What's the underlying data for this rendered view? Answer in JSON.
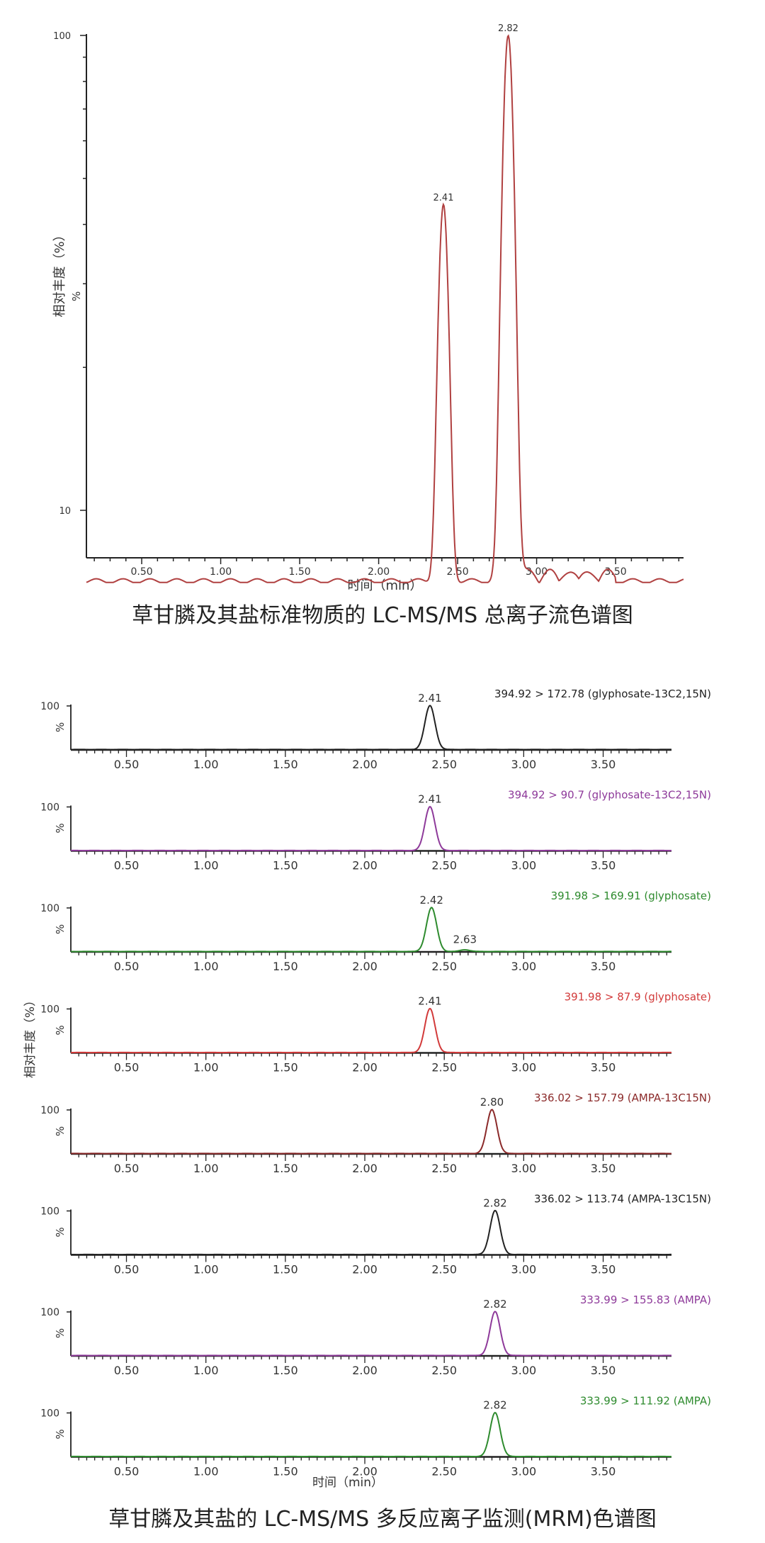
{
  "chart_data": [
    {
      "type": "line",
      "title": "",
      "xlabel": "时间（min）",
      "ylabel": "相对丰度（%）",
      "ylabel_extra": "%",
      "xlim": [
        0.15,
        3.93
      ],
      "ylim": [
        7,
        100
      ],
      "y_scale": "log",
      "y_ticks": [
        "100",
        "10"
      ],
      "x_ticks": [
        "0.50",
        "1.00",
        "1.50",
        "2.00",
        "2.50",
        "3.00",
        "3.50"
      ],
      "series_color": "#b04040",
      "peaks": [
        {
          "rt": 2.41,
          "height": 44,
          "width": 0.028,
          "label": "2.41"
        },
        {
          "rt": 2.82,
          "height": 100,
          "width": 0.03,
          "label": "2.82"
        }
      ],
      "baseline": 7.1
    },
    {
      "type": "line",
      "title": "",
      "xlabel": "时间（min）",
      "ylabel": "相对丰度（%）",
      "xlim": [
        0.15,
        3.93
      ],
      "ylim": [
        0,
        100
      ],
      "x_ticks": [
        "0.50",
        "1.00",
        "1.50",
        "2.00",
        "2.50",
        "3.00",
        "3.50"
      ],
      "panels": [
        {
          "transition": "394.92 > 172.78 (glyphosate-13C2,15N)",
          "color": "#222222",
          "y_top": "100",
          "y_pct": "%",
          "peaks": [
            {
              "rt": 2.41,
              "height": 100,
              "label": "2.41"
            }
          ]
        },
        {
          "transition": "394.92 > 90.7 (glyphosate-13C2,15N)",
          "color": "#8e3a9a",
          "y_top": "100",
          "y_pct": "%",
          "peaks": [
            {
              "rt": 2.41,
              "height": 100,
              "label": "2.41"
            }
          ]
        },
        {
          "transition": "391.98 > 169.91 (glyphosate)",
          "color": "#2e8b2e",
          "y_top": "100",
          "y_pct": "%",
          "peaks": [
            {
              "rt": 2.42,
              "height": 100,
              "label": "2.42"
            },
            {
              "rt": 2.63,
              "height": 4,
              "label": "2.63"
            }
          ]
        },
        {
          "transition": "391.98 > 87.9 (glyphosate)",
          "color": "#d23a3a",
          "y_top": "100",
          "y_pct": "%",
          "peaks": [
            {
              "rt": 2.41,
              "height": 100,
              "label": "2.41"
            }
          ]
        },
        {
          "transition": "336.02 > 157.79 (AMPA-13C15N)",
          "color": "#8b2a2a",
          "y_top": "100",
          "y_pct": "%",
          "peaks": [
            {
              "rt": 2.8,
              "height": 100,
              "label": "2.80"
            }
          ]
        },
        {
          "transition": "336.02 > 113.74 (AMPA-13C15N)",
          "color": "#222222",
          "y_top": "100",
          "y_pct": "%",
          "peaks": [
            {
              "rt": 2.82,
              "height": 100,
              "label": "2.82"
            }
          ]
        },
        {
          "transition": "333.99 > 155.83 (AMPA)",
          "color": "#8e3a9a",
          "y_top": "100",
          "y_pct": "%",
          "peaks": [
            {
              "rt": 2.82,
              "height": 100,
              "label": "2.82"
            }
          ]
        },
        {
          "transition": "333.99 > 111.92 (AMPA)",
          "color": "#2e8b2e",
          "y_top": "100",
          "y_pct": "%",
          "peaks": [
            {
              "rt": 2.82,
              "height": 100,
              "label": "2.82"
            }
          ]
        }
      ]
    }
  ],
  "captions": {
    "top": "草甘膦及其盐标准物质的 LC-MS/MS 总离子流色谱图",
    "bottom": "草甘膦及其盐的 LC-MS/MS 多反应离子监测(MRM)色谱图"
  }
}
